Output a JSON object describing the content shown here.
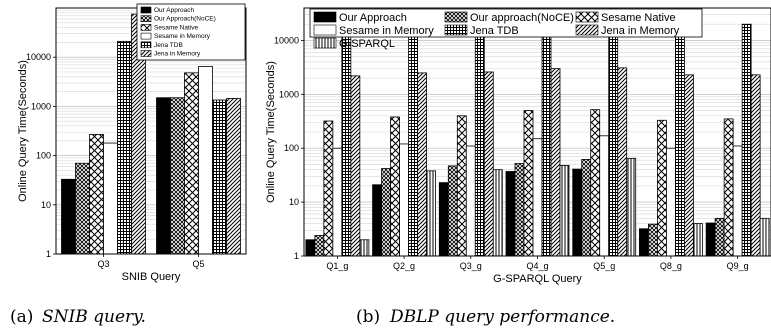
{
  "captions": {
    "a": {
      "label": "(a)",
      "text": "SNIB query."
    },
    "b": {
      "label": "(b)",
      "text": "DBLP query performance."
    }
  },
  "chart_data": [
    {
      "type": "bar",
      "yscale": "log",
      "ylim": [
        1,
        100000
      ],
      "yticks": [
        "1",
        "10",
        "100",
        "1000",
        "10000"
      ],
      "xlabel": "SNIB  Query",
      "ylabel": "Online Query Time(Seconds)",
      "legend_position": "top-right",
      "categories": [
        "Q3",
        "Q5"
      ],
      "series": [
        {
          "name": "Our Approach",
          "pattern": "solid",
          "values": [
            33,
            1500
          ]
        },
        {
          "name": "Our Approach(NoCE)",
          "pattern": "crosshatch",
          "values": [
            70,
            1500
          ]
        },
        {
          "name": "Sesame Native",
          "pattern": "xcross",
          "values": [
            270,
            4800
          ]
        },
        {
          "name": "Sesame in Memory",
          "pattern": "empty",
          "values": [
            180,
            6500
          ]
        },
        {
          "name": "Jena TDB",
          "pattern": "grid",
          "values": [
            21000,
            1350
          ]
        },
        {
          "name": "Jena in Memory",
          "pattern": "diag",
          "values": [
            75000,
            1450
          ]
        }
      ]
    },
    {
      "type": "bar",
      "yscale": "log",
      "ylim": [
        1,
        40000
      ],
      "yticks": [
        "1",
        "10",
        "100",
        "1000",
        "10000"
      ],
      "xlabel": "G-SPARQL  Query",
      "ylabel": "Online Query Time(Seconds)",
      "legend_position": "top",
      "categories": [
        "Q1_g",
        "Q2_g",
        "Q3_g",
        "Q4_g",
        "Q5_g",
        "Q8_g",
        "Q9_g"
      ],
      "series": [
        {
          "name": "Our Approach",
          "pattern": "solid",
          "values": [
            2,
            21,
            23,
            37,
            41,
            3.2,
            4.1
          ]
        },
        {
          "name": "Our approach(NoCE)",
          "pattern": "crosshatch",
          "values": [
            2.4,
            42,
            47,
            52,
            62,
            3.9,
            5
          ]
        },
        {
          "name": "Sesame Native",
          "pattern": "xcross",
          "values": [
            320,
            380,
            400,
            500,
            520,
            330,
            350
          ]
        },
        {
          "name": "Sesame in Memory",
          "pattern": "empty",
          "values": [
            100,
            120,
            110,
            150,
            170,
            100,
            110
          ]
        },
        {
          "name": "Jena TDB",
          "pattern": "grid",
          "values": [
            20000,
            28000,
            30000,
            31000,
            38000,
            20000,
            20000
          ]
        },
        {
          "name": "Jena in Memory",
          "pattern": "diag",
          "values": [
            2200,
            2500,
            2600,
            3000,
            3100,
            2300,
            2300
          ]
        },
        {
          "name": "G-SPARQL",
          "pattern": "vlines",
          "values": [
            2,
            38,
            40,
            48,
            65,
            4,
            5
          ]
        }
      ]
    }
  ]
}
